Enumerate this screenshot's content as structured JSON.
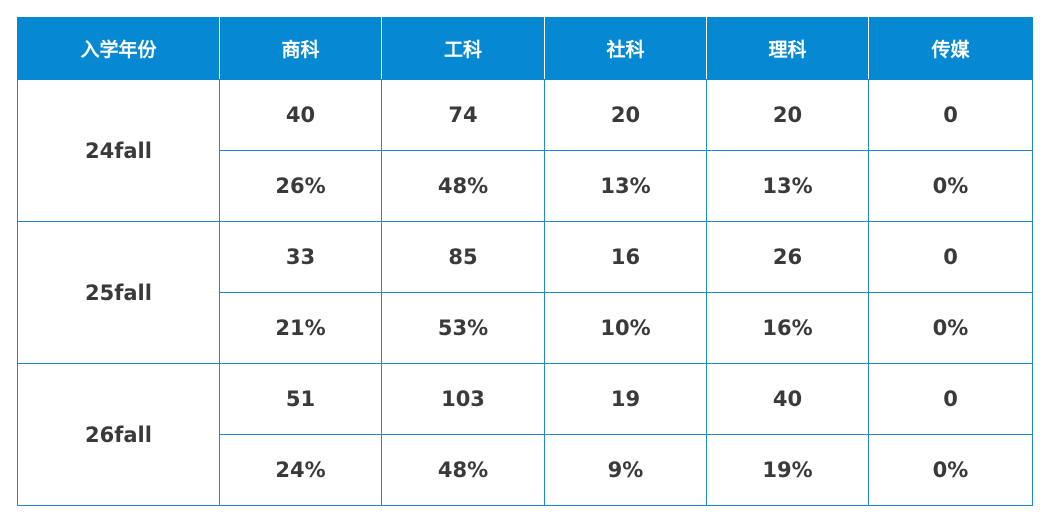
{
  "table": {
    "header": [
      "入学年份",
      "商科",
      "工科",
      "社科",
      "理科",
      "传媒"
    ],
    "rows": [
      {
        "label": "24fall",
        "counts": [
          40,
          74,
          20,
          20,
          0
        ],
        "percents": [
          "26%",
          "48%",
          "13%",
          "13%",
          "0%"
        ]
      },
      {
        "label": "25fall",
        "counts": [
          33,
          85,
          16,
          26,
          0
        ],
        "percents": [
          "21%",
          "53%",
          "10%",
          "16%",
          "0%"
        ]
      },
      {
        "label": "26fall",
        "counts": [
          51,
          103,
          19,
          40,
          0
        ],
        "percents": [
          "24%",
          "48%",
          "9%",
          "19%",
          "0%"
        ]
      }
    ]
  }
}
